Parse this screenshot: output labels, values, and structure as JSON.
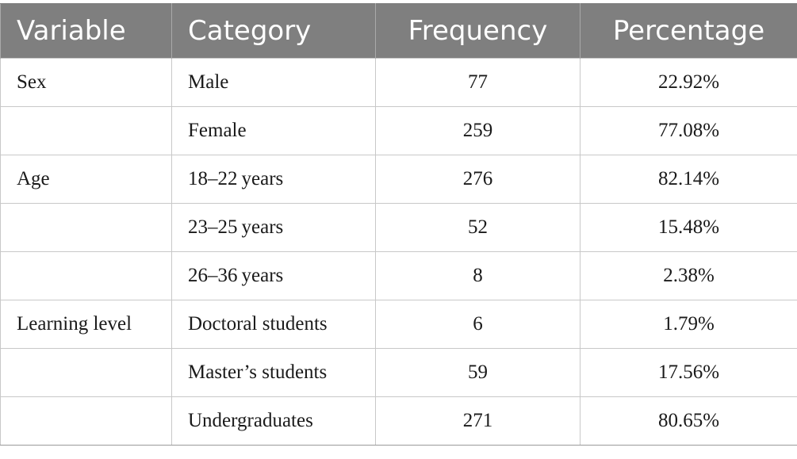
{
  "table": {
    "headers": [
      "Variable",
      "Category",
      "Frequency",
      "Percentage"
    ],
    "rows": [
      {
        "variable": "Sex",
        "category": "Male",
        "frequency": "77",
        "percentage": "22.92%"
      },
      {
        "variable": "",
        "category": "Female",
        "frequency": "259",
        "percentage": "77.08%"
      },
      {
        "variable": "Age",
        "category": "18–22 years",
        "frequency": "276",
        "percentage": "82.14%"
      },
      {
        "variable": "",
        "category": "23–25 years",
        "frequency": "52",
        "percentage": "15.48%"
      },
      {
        "variable": "",
        "category": "26–36 years",
        "frequency": "8",
        "percentage": "2.38%"
      },
      {
        "variable": "Learning level",
        "category": "Doctoral students",
        "frequency": "6",
        "percentage": "1.79%"
      },
      {
        "variable": "",
        "category": "Master’s students",
        "frequency": "59",
        "percentage": "17.56%"
      },
      {
        "variable": "",
        "category": "Undergraduates",
        "frequency": "271",
        "percentage": "80.65%"
      }
    ]
  },
  "colors": {
    "header_bg": "#7f7f7f",
    "header_text": "#ffffff",
    "grid": "#c8c8c8"
  }
}
